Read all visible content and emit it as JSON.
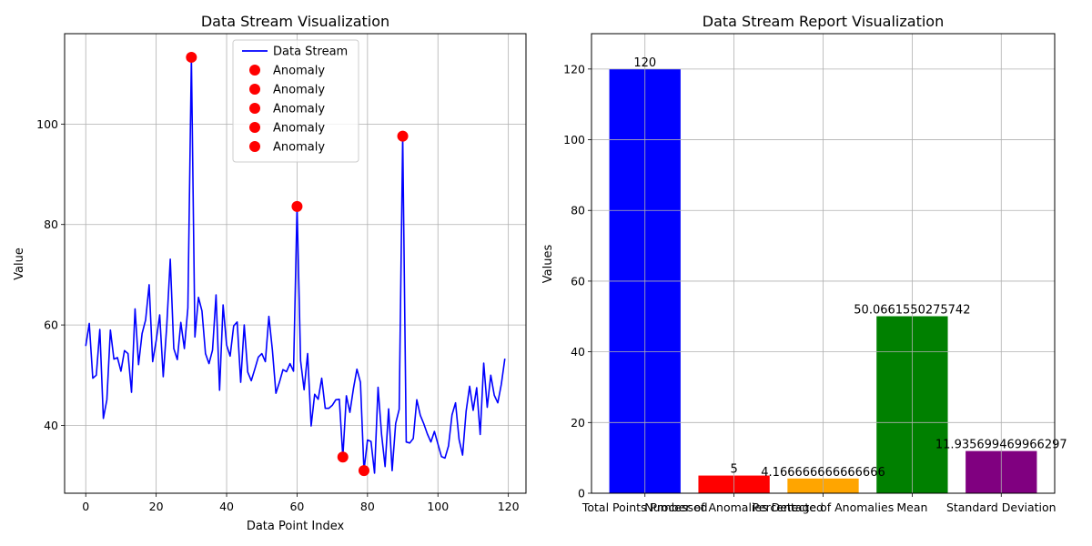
{
  "chart_data": [
    {
      "type": "line",
      "title": "Data Stream Visualization",
      "xlabel": "Data Point Index",
      "ylabel": "Value",
      "xlim": [
        -6,
        125
      ],
      "ylim": [
        26.5,
        118
      ],
      "xticks": [
        0,
        20,
        40,
        60,
        80,
        100,
        120
      ],
      "yticks": [
        40,
        60,
        80,
        100
      ],
      "grid": true,
      "legend_position": "top-center",
      "legend": [
        "Data Stream",
        "Anomaly",
        "Anomaly",
        "Anomaly",
        "Anomaly",
        "Anomaly"
      ],
      "colors": {
        "line": "#0000ff",
        "anomaly": "#ff0000"
      },
      "series": [
        {
          "name": "Data Stream",
          "values": [
            55.8,
            60.3,
            49.4,
            50.0,
            59.1,
            41.4,
            45.1,
            59.0,
            53.2,
            53.5,
            50.8,
            54.9,
            54.3,
            46.6,
            63.2,
            52.1,
            58.3,
            61.0,
            68.0,
            52.7,
            56.9,
            62.0,
            49.7,
            59.8,
            73.1,
            55.3,
            53.1,
            60.5,
            55.3,
            63.4,
            113.3,
            57.6,
            65.5,
            62.8,
            54.3,
            52.3,
            55.0,
            66.0,
            47.0,
            64.0,
            56.0,
            53.8,
            59.8,
            60.6,
            48.6,
            60.0,
            50.6,
            48.9,
            51.2,
            53.6,
            54.3,
            52.7,
            61.7,
            55.0,
            46.4,
            48.6,
            51.1,
            50.7,
            52.3,
            50.8,
            83.6,
            52.9,
            47.1,
            54.3,
            39.9,
            46.2,
            45.2,
            49.4,
            43.4,
            43.4,
            44.0,
            45.1,
            45.2,
            33.7,
            45.9,
            42.6,
            47.3,
            51.2,
            48.6,
            31.0,
            37.1,
            36.8,
            30.5,
            47.6,
            38.2,
            31.8,
            43.3,
            31.0,
            40.4,
            43.2,
            97.6,
            36.7,
            36.5,
            37.4,
            45.1,
            42.0,
            40.3,
            38.3,
            36.7,
            38.8,
            36.3,
            33.8,
            33.5,
            35.9,
            42.1,
            44.5,
            37.2,
            34.1,
            42.8,
            47.8,
            43.0,
            47.5,
            38.2,
            52.4,
            43.6,
            50.0,
            46.0,
            44.5,
            48.2,
            53.3
          ]
        }
      ],
      "anomalies": [
        {
          "x": 30,
          "y": 113.3
        },
        {
          "x": 60,
          "y": 83.6
        },
        {
          "x": 73,
          "y": 33.7
        },
        {
          "x": 79,
          "y": 31.0
        },
        {
          "x": 90,
          "y": 97.6
        }
      ]
    },
    {
      "type": "bar",
      "title": "Data Stream Report Visualization",
      "xlabel": "",
      "ylabel": "Values",
      "ylim": [
        0,
        130
      ],
      "yticks": [
        0,
        20,
        40,
        60,
        80,
        100,
        120
      ],
      "grid": true,
      "categories": [
        "Total Points Processed",
        "Number of Anomalies Detected",
        "Percentage of Anomalies",
        "Mean",
        "Standard Deviation"
      ],
      "values": [
        120,
        5,
        4.166666666666666,
        50.0661550275742,
        11.935699469966297
      ],
      "value_labels": [
        "120",
        "5",
        "4.166666666666666",
        "50.0661550275742",
        "11.935699469966297"
      ],
      "colors": [
        "#0000ff",
        "#ff0000",
        "#ffa500",
        "#008000",
        "#800080"
      ]
    }
  ]
}
